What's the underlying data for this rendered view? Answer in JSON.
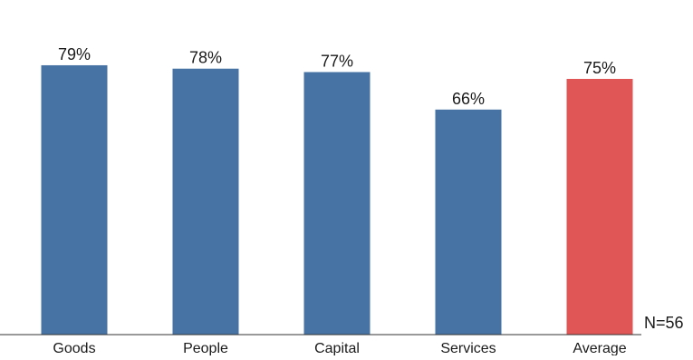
{
  "chart_data": {
    "type": "bar",
    "categories": [
      "Goods",
      "People",
      "Capital",
      "Services",
      "Average"
    ],
    "values": [
      79,
      78,
      77,
      66,
      75
    ],
    "value_labels": [
      "79%",
      "78%",
      "77%",
      "66%",
      "75%"
    ],
    "unit": "%",
    "ylim": [
      0,
      100
    ],
    "grid": false,
    "annotation": "N=56",
    "colors": {
      "default_bar": "#4673a3",
      "average_bar": "#e05555",
      "baseline": "#333333",
      "text": "#1a1a1a"
    },
    "highlight_index": 4
  }
}
